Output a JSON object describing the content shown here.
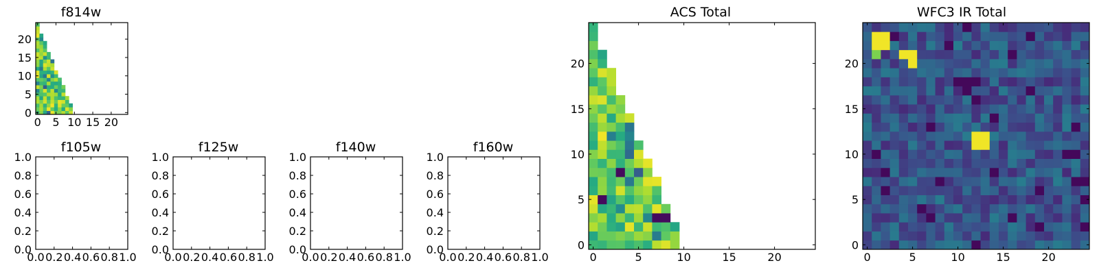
{
  "chart_data": [
    {
      "name": "f814w",
      "type": "heatmap",
      "title": "f814w",
      "xticks": [
        "0",
        "5",
        "10",
        "15",
        "20"
      ],
      "yticks": [
        "0",
        "5",
        "10",
        "15",
        "20"
      ],
      "xlim": [
        -0.5,
        24.5
      ],
      "ylim": [
        -0.5,
        24.5
      ],
      "colormap": "viridis",
      "pattern": "lower-left triangle, row y has cells for x < 10 - 0.4*y",
      "seed": 7
    },
    {
      "name": "f105w",
      "type": "empty",
      "title": "f105w",
      "xticks": [
        "0.0",
        "0.2",
        "0.4",
        "0.6",
        "0.8",
        "1.0"
      ],
      "yticks": [
        "0.0",
        "0.2",
        "0.4",
        "0.6",
        "0.8",
        "1.0"
      ],
      "xlim": [
        0,
        1
      ],
      "ylim": [
        0,
        1
      ]
    },
    {
      "name": "f125w",
      "type": "empty",
      "title": "f125w",
      "xticks": [
        "0.0",
        "0.2",
        "0.4",
        "0.6",
        "0.8",
        "1.0"
      ],
      "yticks": [
        "0.0",
        "0.2",
        "0.4",
        "0.6",
        "0.8",
        "1.0"
      ],
      "xlim": [
        0,
        1
      ],
      "ylim": [
        0,
        1
      ]
    },
    {
      "name": "f140w",
      "type": "empty",
      "title": "f140w",
      "xticks": [
        "0.0",
        "0.2",
        "0.4",
        "0.6",
        "0.8",
        "1.0"
      ],
      "yticks": [
        "0.0",
        "0.2",
        "0.4",
        "0.6",
        "0.8",
        "1.0"
      ],
      "xlim": [
        0,
        1
      ],
      "ylim": [
        0,
        1
      ]
    },
    {
      "name": "f160w",
      "type": "empty",
      "title": "f160w",
      "xticks": [
        "0.0",
        "0.2",
        "0.4",
        "0.6",
        "0.8",
        "1.0"
      ],
      "yticks": [
        "0.0",
        "0.2",
        "0.4",
        "0.6",
        "0.8",
        "1.0"
      ],
      "xlim": [
        0,
        1
      ],
      "ylim": [
        0,
        1
      ]
    },
    {
      "name": "acs-total",
      "type": "heatmap",
      "title": "ACS Total",
      "xticks": [
        "0",
        "5",
        "10",
        "15",
        "20"
      ],
      "yticks": [
        "0",
        "5",
        "10",
        "15",
        "20"
      ],
      "xlim": [
        -0.5,
        24.5
      ],
      "ylim": [
        -0.5,
        24.5
      ],
      "colormap": "viridis",
      "pattern": "lower-left triangle, row y has cells for x < 10 - 0.4*y",
      "seed": 21,
      "dark_cells": [
        [
          3,
          8
        ],
        [
          1,
          5
        ],
        [
          7,
          3
        ],
        [
          8,
          3
        ]
      ]
    },
    {
      "name": "wfc3-ir-total",
      "type": "heatmap",
      "title": "WFC3 IR Total",
      "xticks": [
        "0",
        "5",
        "10",
        "15",
        "20"
      ],
      "yticks": [
        "0",
        "5",
        "10",
        "15",
        "20"
      ],
      "xlim": [
        -0.5,
        24.5
      ],
      "ylim": [
        -0.5,
        24.5
      ],
      "colormap": "viridis",
      "pattern": "full 25x25 grid, mostly dark blue noise",
      "seed": 99,
      "bright_cells": [
        [
          1,
          22
        ],
        [
          2,
          22
        ],
        [
          1,
          23
        ],
        [
          2,
          23
        ],
        [
          5,
          20
        ],
        [
          5,
          21
        ],
        [
          4,
          21
        ],
        [
          12,
          11
        ],
        [
          13,
          12
        ],
        [
          12,
          12
        ],
        [
          13,
          11
        ]
      ]
    }
  ]
}
